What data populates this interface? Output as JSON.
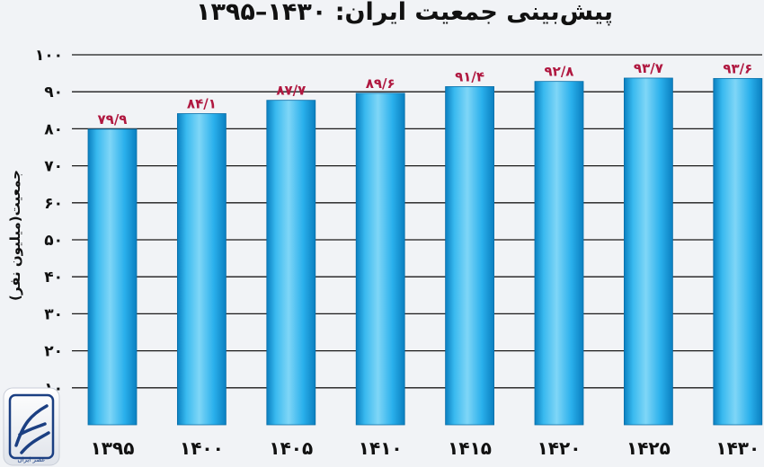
{
  "chart_data": {
    "type": "bar",
    "title": "پیش‌بینی جمعیت ایران: ۱۴۳۰–۱۳۹۵",
    "ylabel": "جمعیت(میلیون نفر)",
    "xlabel": "",
    "categories": [
      "۱۳۹۵",
      "۱۴۰۰",
      "۱۴۰۵",
      "۱۴۱۰",
      "۱۴۱۵",
      "۱۴۲۰",
      "۱۴۲۵",
      "۱۴۳۰"
    ],
    "values": [
      79.9,
      84.1,
      87.7,
      89.6,
      91.4,
      92.8,
      93.7,
      93.6
    ],
    "value_labels": [
      "۷۹/۹",
      "۸۴/۱",
      "۸۷/۷",
      "۸۹/۶",
      "۹۱/۴",
      "۹۲/۸",
      "۹۳/۷",
      "۹۳/۶"
    ],
    "yticks": [
      10,
      20,
      30,
      40,
      50,
      60,
      70,
      80,
      90,
      100
    ],
    "ytick_labels": [
      "۱۰",
      "۲۰",
      "۳۰",
      "۴۰",
      "۵۰",
      "۶۰",
      "۷۰",
      "۸۰",
      "۹۰",
      "۱۰۰"
    ],
    "ylim": [
      0,
      100
    ],
    "grid": true,
    "legend": "none",
    "colors": {
      "bar_light": "#7fd6f7",
      "bar": "#1ca6e6",
      "bar_dark": "#0a7fc0",
      "label": "#b01840",
      "grid": "#1a1a1a"
    }
  },
  "watermark": {
    "icon": "news-agency-logo-icon",
    "text": "عصر ایران"
  }
}
